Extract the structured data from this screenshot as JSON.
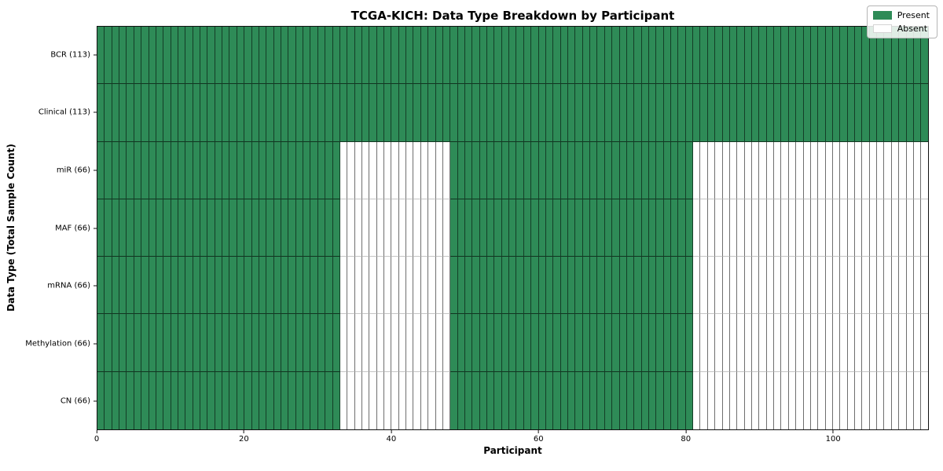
{
  "chart_data": {
    "type": "heatmap",
    "title": "TCGA-KICH: Data Type Breakdown by Participant",
    "xlabel": "Participant",
    "ylabel": "Data Type (Total Sample Count)",
    "n_participants": 113,
    "x_range": [
      0,
      113
    ],
    "x_ticks": [
      0,
      20,
      40,
      60,
      80,
      100
    ],
    "grid": false,
    "legend_position": "upper right",
    "colors": {
      "present": "#2e8b57",
      "absent": "#ffffff"
    },
    "legend": [
      {
        "label": "Present",
        "state": "present"
      },
      {
        "label": "Absent",
        "state": "absent"
      }
    ],
    "rows": [
      {
        "label": "BCR (113)",
        "total_samples": 113,
        "present_ranges": [
          [
            0,
            113
          ]
        ]
      },
      {
        "label": "Clinical (113)",
        "total_samples": 113,
        "present_ranges": [
          [
            0,
            113
          ]
        ]
      },
      {
        "label": "miR (66)",
        "total_samples": 66,
        "present_ranges": [
          [
            0,
            33
          ],
          [
            48,
            81
          ]
        ]
      },
      {
        "label": "MAF (66)",
        "total_samples": 66,
        "present_ranges": [
          [
            0,
            33
          ],
          [
            48,
            81
          ]
        ]
      },
      {
        "label": "mRNA (66)",
        "total_samples": 66,
        "present_ranges": [
          [
            0,
            33
          ],
          [
            48,
            81
          ]
        ]
      },
      {
        "label": "Methylation (66)",
        "total_samples": 66,
        "present_ranges": [
          [
            0,
            33
          ],
          [
            48,
            81
          ]
        ]
      },
      {
        "label": "CN (66)",
        "total_samples": 66,
        "present_ranges": [
          [
            0,
            33
          ],
          [
            48,
            81
          ]
        ]
      }
    ]
  }
}
